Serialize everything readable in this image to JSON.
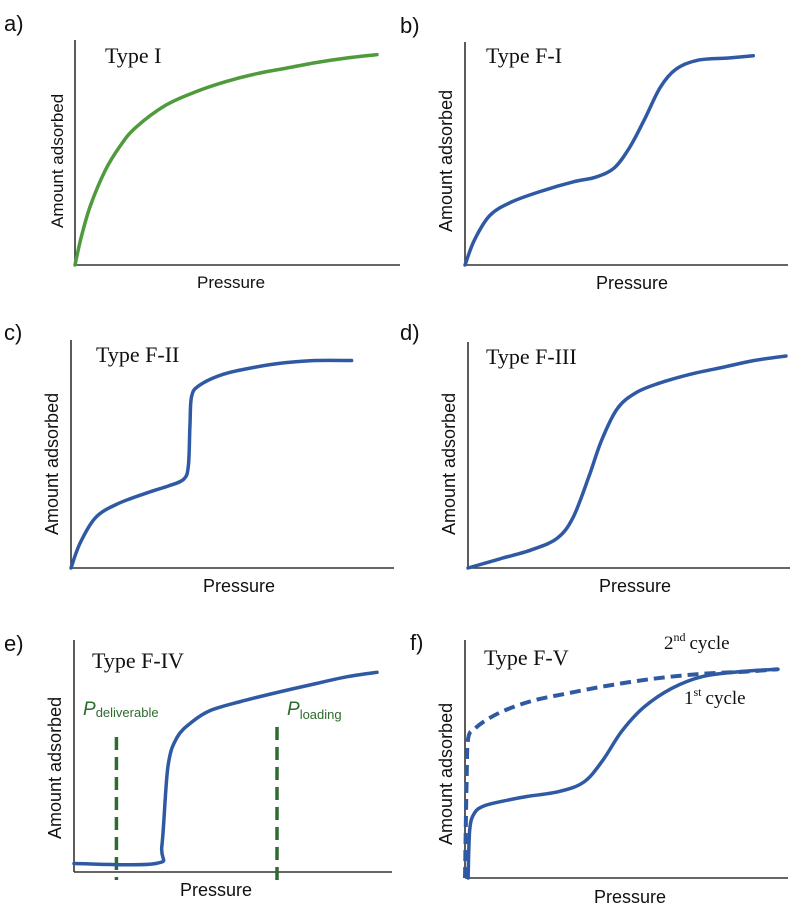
{
  "chart_data": [
    {
      "panel": "a)",
      "type": "line",
      "title": "Type I",
      "xlabel": "Pressure",
      "ylabel": "Amount adsorbed",
      "color": "#4e9a3c",
      "points": [
        [
          0,
          0
        ],
        [
          0.02,
          0.12
        ],
        [
          0.05,
          0.26
        ],
        [
          0.1,
          0.42
        ],
        [
          0.15,
          0.53
        ],
        [
          0.2,
          0.61
        ],
        [
          0.3,
          0.71
        ],
        [
          0.4,
          0.77
        ],
        [
          0.5,
          0.815
        ],
        [
          0.6,
          0.85
        ],
        [
          0.7,
          0.875
        ],
        [
          0.8,
          0.9
        ],
        [
          0.9,
          0.92
        ],
        [
          1.0,
          0.935
        ]
      ]
    },
    {
      "panel": "b)",
      "type": "line",
      "title": "Type F-I",
      "xlabel": "Pressure",
      "ylabel": "Amount adsorbed",
      "color": "#2f5aa3",
      "points": [
        [
          0,
          0
        ],
        [
          0.03,
          0.11
        ],
        [
          0.08,
          0.22
        ],
        [
          0.15,
          0.28
        ],
        [
          0.25,
          0.33
        ],
        [
          0.35,
          0.37
        ],
        [
          0.42,
          0.39
        ],
        [
          0.48,
          0.43
        ],
        [
          0.53,
          0.52
        ],
        [
          0.58,
          0.65
        ],
        [
          0.63,
          0.79
        ],
        [
          0.68,
          0.87
        ],
        [
          0.75,
          0.91
        ],
        [
          0.85,
          0.92
        ],
        [
          0.93,
          0.93
        ]
      ]
    },
    {
      "panel": "c)",
      "type": "line",
      "title": "Type F-II",
      "xlabel": "Pressure",
      "ylabel": "Amount adsorbed",
      "color": "#2f5aa3",
      "points": [
        [
          0,
          0
        ],
        [
          0.03,
          0.11
        ],
        [
          0.08,
          0.22
        ],
        [
          0.15,
          0.28
        ],
        [
          0.25,
          0.33
        ],
        [
          0.32,
          0.36
        ],
        [
          0.37,
          0.39
        ],
        [
          0.385,
          0.45
        ],
        [
          0.39,
          0.62
        ],
        [
          0.395,
          0.75
        ],
        [
          0.42,
          0.8
        ],
        [
          0.5,
          0.85
        ],
        [
          0.6,
          0.88
        ],
        [
          0.7,
          0.9
        ],
        [
          0.8,
          0.91
        ],
        [
          0.92,
          0.91
        ]
      ]
    },
    {
      "panel": "d)",
      "type": "line",
      "title": "Type F-III",
      "xlabel": "Pressure",
      "ylabel": "Amount adsorbed",
      "color": "#2f5aa3",
      "points": [
        [
          0,
          0
        ],
        [
          0.1,
          0.04
        ],
        [
          0.2,
          0.08
        ],
        [
          0.28,
          0.13
        ],
        [
          0.33,
          0.22
        ],
        [
          0.38,
          0.4
        ],
        [
          0.42,
          0.56
        ],
        [
          0.47,
          0.7
        ],
        [
          0.53,
          0.77
        ],
        [
          0.6,
          0.81
        ],
        [
          0.7,
          0.85
        ],
        [
          0.8,
          0.88
        ],
        [
          0.9,
          0.91
        ],
        [
          1.0,
          0.93
        ]
      ]
    },
    {
      "panel": "e)",
      "type": "line",
      "title": "Type F-IV",
      "xlabel": "Pressure",
      "ylabel": "Amount adsorbed",
      "color": "#2f5aa3",
      "points": [
        [
          0,
          0.02
        ],
        [
          0.27,
          0.02
        ],
        [
          0.29,
          0.1
        ],
        [
          0.31,
          0.45
        ],
        [
          0.34,
          0.58
        ],
        [
          0.39,
          0.65
        ],
        [
          0.45,
          0.7
        ],
        [
          0.55,
          0.74
        ],
        [
          0.67,
          0.78
        ],
        [
          0.8,
          0.82
        ],
        [
          0.9,
          0.85
        ],
        [
          1.0,
          0.87
        ]
      ],
      "markers": [
        {
          "label": "P",
          "subscript": "deliverable",
          "x": 0.14,
          "color": "#2e6b2e"
        },
        {
          "label": "P",
          "subscript": "loading",
          "x": 0.67,
          "color": "#2e6b2e"
        }
      ]
    },
    {
      "panel": "f)",
      "type": "line",
      "title": "Type F-V",
      "xlabel": "Pressure",
      "ylabel": "Amount adsorbed",
      "series": [
        {
          "name": "1st cycle",
          "style": "solid",
          "color": "#2f5aa3",
          "points": [
            [
              0.01,
              0
            ],
            [
              0.015,
              0.2
            ],
            [
              0.03,
              0.27
            ],
            [
              0.06,
              0.3
            ],
            [
              0.12,
              0.32
            ],
            [
              0.2,
              0.34
            ],
            [
              0.3,
              0.36
            ],
            [
              0.38,
              0.4
            ],
            [
              0.44,
              0.49
            ],
            [
              0.5,
              0.61
            ],
            [
              0.57,
              0.71
            ],
            [
              0.66,
              0.79
            ],
            [
              0.76,
              0.84
            ],
            [
              0.88,
              0.86
            ],
            [
              1.0,
              0.87
            ]
          ]
        },
        {
          "name": "2nd cycle",
          "style": "dashed",
          "color": "#2f5aa3",
          "points": [
            [
              0,
              0
            ],
            [
              0.005,
              0.4
            ],
            [
              0.01,
              0.58
            ],
            [
              0.03,
              0.62
            ],
            [
              0.07,
              0.66
            ],
            [
              0.13,
              0.7
            ],
            [
              0.22,
              0.74
            ],
            [
              0.33,
              0.77
            ],
            [
              0.45,
              0.8
            ],
            [
              0.6,
              0.83
            ],
            [
              0.75,
              0.85
            ],
            [
              0.9,
              0.86
            ],
            [
              1.0,
              0.87
            ]
          ]
        }
      ],
      "cycle_labels": [
        {
          "number": "2",
          "sup": "nd",
          "text": "cycle"
        },
        {
          "number": "1",
          "sup": "st",
          "text": "cycle"
        }
      ]
    }
  ]
}
